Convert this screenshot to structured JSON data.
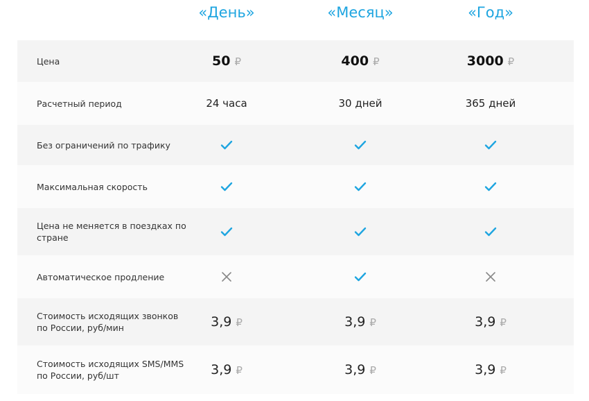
{
  "colors": {
    "accent": "#1ea5e0",
    "check": "#1ea5e0",
    "cross": "#888888"
  },
  "currency": "₽",
  "plans": [
    "«День»",
    "«Месяц»",
    "«Год»"
  ],
  "rows": [
    {
      "label": "Цена",
      "type": "price",
      "values": [
        "50",
        "400",
        "3000"
      ]
    },
    {
      "label": "Расчетный период",
      "type": "text",
      "values": [
        "24 часа",
        "30 дней",
        "365 дней"
      ]
    },
    {
      "label": "Без ограничений по трафику",
      "type": "icon",
      "values": [
        "check-icon",
        "check-icon",
        "check-icon"
      ]
    },
    {
      "label": "Максимальная скорость",
      "type": "icon",
      "values": [
        "check-icon",
        "check-icon",
        "check-icon"
      ]
    },
    {
      "label": "Цена не меняется в поездках по стране",
      "type": "icon",
      "values": [
        "check-icon",
        "check-icon",
        "check-icon"
      ]
    },
    {
      "label": "Автоматическое продление",
      "type": "icon",
      "values": [
        "cross-icon",
        "check-icon",
        "cross-icon"
      ]
    },
    {
      "label": "Стоимость исходящих звонков по России, руб/мин",
      "type": "value",
      "values": [
        "3,9",
        "3,9",
        "3,9"
      ]
    },
    {
      "label": "Стоимость исходящих SMS/MMS по России, руб/шт",
      "type": "value",
      "values": [
        "3,9",
        "3,9",
        "3,9"
      ]
    }
  ]
}
